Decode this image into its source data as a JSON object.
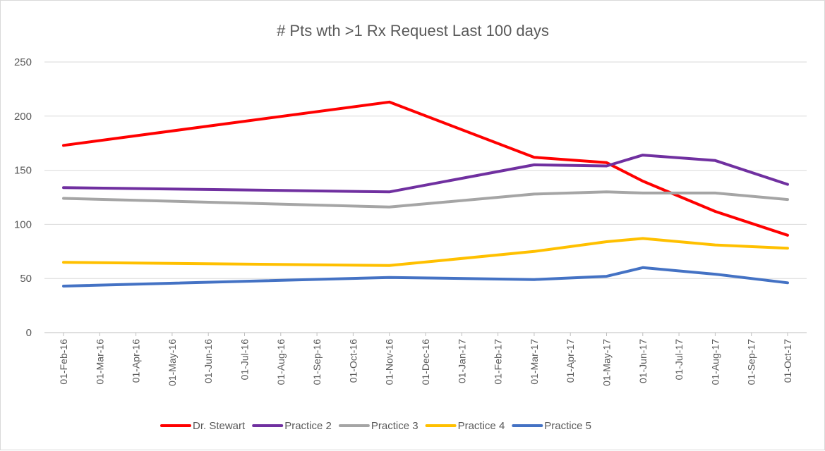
{
  "chart_data": {
    "type": "line",
    "title": "# Pts wth >1 Rx Request Last 100 days",
    "xlabel": "",
    "ylabel": "",
    "ylim": [
      0,
      250
    ],
    "yticks": [
      0,
      50,
      100,
      150,
      200,
      250
    ],
    "grid": true,
    "legend_position": "bottom",
    "x_tick_labels": [
      "01-Feb-16",
      "01-Mar-16",
      "01-Apr-16",
      "01-May-16",
      "01-Jun-16",
      "01-Jul-16",
      "01-Aug-16",
      "01-Sep-16",
      "01-Oct-16",
      "01-Nov-16",
      "01-Dec-16",
      "01-Jan-17",
      "01-Feb-17",
      "01-Mar-17",
      "01-Apr-17",
      "01-May-17",
      "01-Jun-17",
      "01-Jul-17",
      "01-Aug-17",
      "01-Sep-17",
      "01-Oct-17"
    ],
    "x": [
      "01-Feb-16",
      "01-Nov-16",
      "01-Mar-17",
      "01-May-17",
      "01-Jun-17",
      "01-Aug-17",
      "01-Oct-17"
    ],
    "series": [
      {
        "name": "Dr. Stewart",
        "color": "#ff0000",
        "values": [
          173,
          213,
          162,
          157,
          140,
          112,
          90
        ]
      },
      {
        "name": "Practice 2",
        "color": "#7030a0",
        "values": [
          134,
          130,
          155,
          154,
          164,
          159,
          137
        ]
      },
      {
        "name": "Practice 3",
        "color": "#a5a5a5",
        "values": [
          124,
          116,
          128,
          130,
          129,
          129,
          123
        ]
      },
      {
        "name": "Practice 4",
        "color": "#ffc000",
        "values": [
          65,
          62,
          75,
          84,
          87,
          81,
          78
        ]
      },
      {
        "name": "Practice 5",
        "color": "#4472c4",
        "values": [
          43,
          51,
          49,
          52,
          60,
          54,
          46
        ]
      }
    ]
  }
}
